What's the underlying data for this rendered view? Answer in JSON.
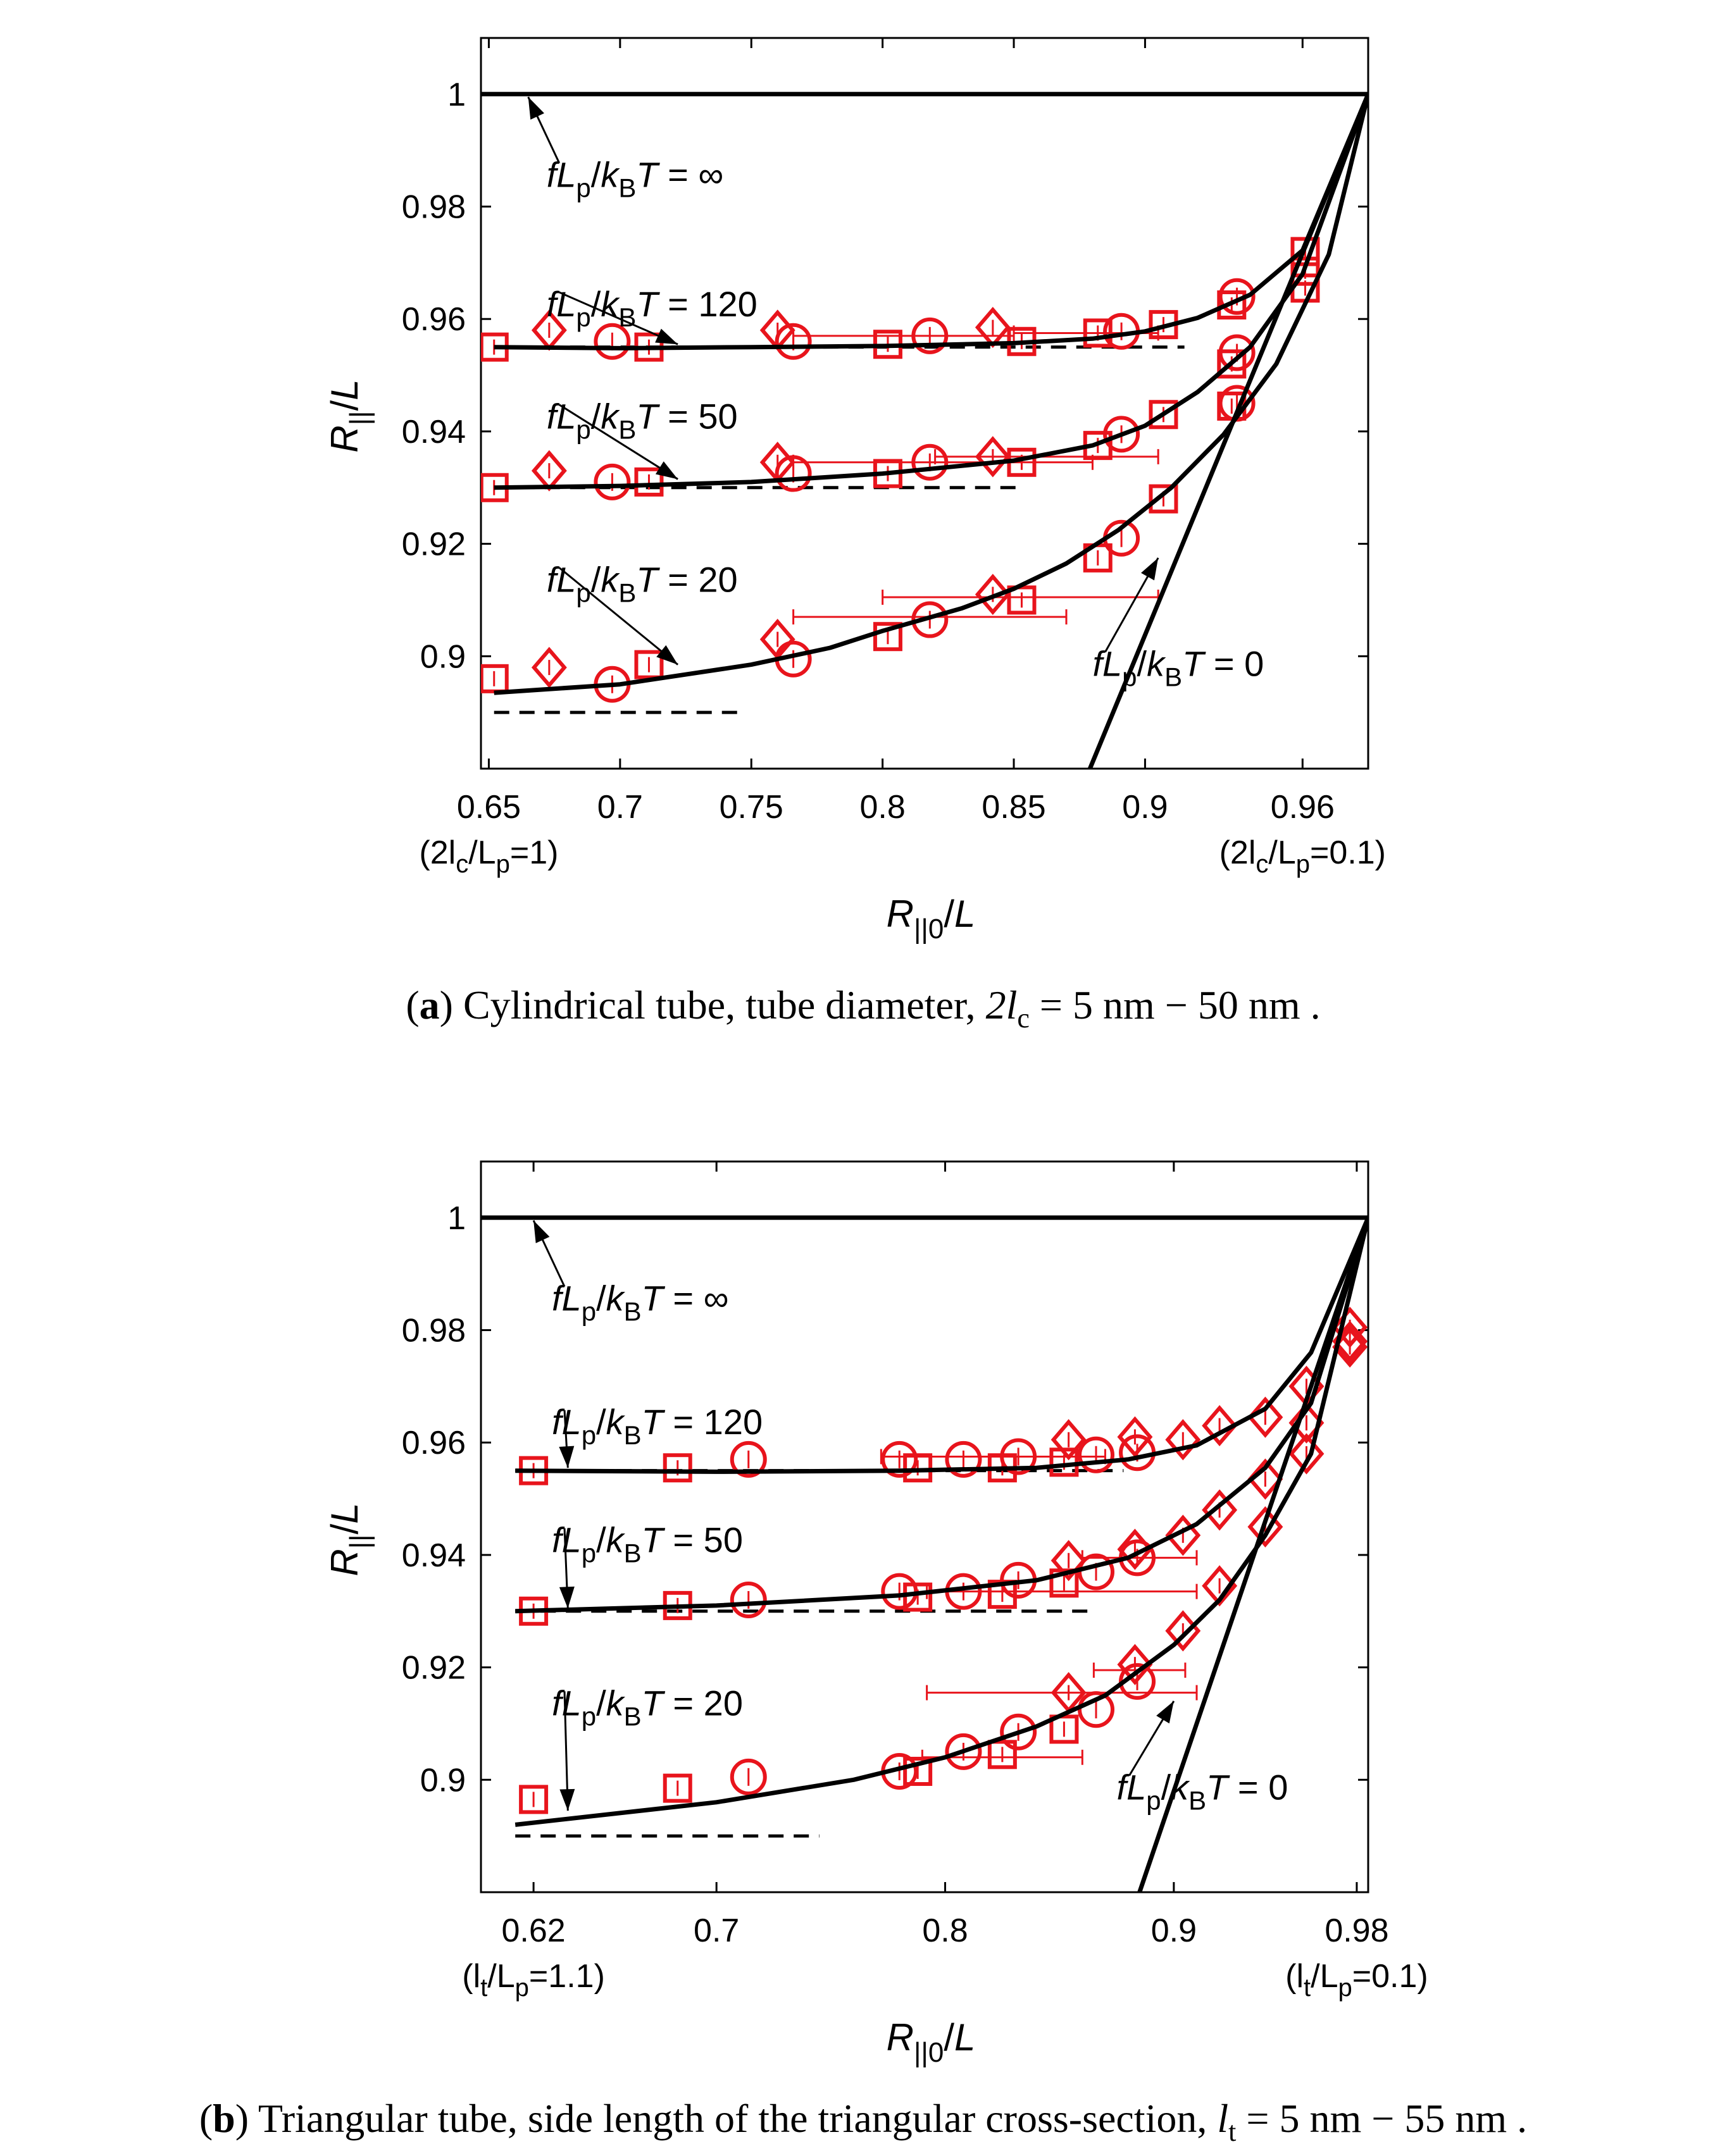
{
  "chart_data": [
    {
      "type": "line",
      "panel_label": "a",
      "caption": ") Cylindrical tube, tube diameter, ",
      "caption_formula": "2l",
      "caption_sub": "c",
      "caption_range": " = 5 nm − 50 nm .",
      "xlabel": "R||0/L",
      "ylabel": "R||/L",
      "xlim": [
        0.647,
        0.985
      ],
      "ylim": [
        0.88,
        1.01
      ],
      "xticks": [
        0.65,
        0.7,
        0.75,
        0.8,
        0.85,
        0.9,
        0.96
      ],
      "yticks": [
        0.9,
        0.92,
        0.94,
        0.96,
        0.98,
        1
      ],
      "x_notes": [
        {
          "x": 0.65,
          "text": "(2l",
          "sub": "c",
          "mid": "/L",
          "sub2": "p",
          "end": "=1)"
        },
        {
          "x": 0.96,
          "text": "(2l",
          "sub": "c",
          "mid": "/L",
          "sub2": "p",
          "end": "=0.1)"
        }
      ],
      "curves": [
        {
          "name": "fLp/kBT = ∞",
          "x": [
            0.647,
            0.985
          ],
          "y": [
            1.0,
            1.0
          ]
        },
        {
          "name": "fLp/kBT = 120",
          "x": [
            0.652,
            0.7,
            0.75,
            0.8,
            0.85,
            0.88,
            0.9,
            0.92,
            0.94,
            0.96,
            0.985
          ],
          "y": [
            0.955,
            0.9548,
            0.955,
            0.9552,
            0.9557,
            0.9565,
            0.9578,
            0.9602,
            0.9643,
            0.9722,
            1.0
          ]
        },
        {
          "name": "fLp/kBT = 50",
          "x": [
            0.652,
            0.7,
            0.75,
            0.8,
            0.85,
            0.88,
            0.9,
            0.92,
            0.94,
            0.96,
            0.985
          ],
          "y": [
            0.93,
            0.9303,
            0.931,
            0.9325,
            0.9348,
            0.9375,
            0.941,
            0.947,
            0.955,
            0.968,
            1.0
          ]
        },
        {
          "name": "fLp/kBT = 20",
          "x": [
            0.652,
            0.7,
            0.75,
            0.78,
            0.8,
            0.83,
            0.85,
            0.87,
            0.89,
            0.91,
            0.93,
            0.95,
            0.97,
            0.985
          ],
          "y": [
            0.8935,
            0.895,
            0.8985,
            0.9015,
            0.9045,
            0.9085,
            0.912,
            0.9165,
            0.9225,
            0.93,
            0.9395,
            0.952,
            0.9715,
            1.0
          ]
        },
        {
          "name": "fLp/kBT = 0",
          "x": [
            0.879,
            0.985
          ],
          "y": [
            0.88,
            1.0
          ]
        }
      ],
      "asymptotes": [
        {
          "y": 0.955,
          "x": [
            0.652,
            0.915
          ]
        },
        {
          "y": 0.93,
          "x": [
            0.652,
            0.853
          ]
        },
        {
          "y": 0.89,
          "x": [
            0.652,
            0.745
          ]
        }
      ],
      "markers": {
        "square": [
          [
            0.652,
            0.955
          ],
          [
            0.711,
            0.955
          ],
          [
            0.802,
            0.9555
          ],
          [
            0.853,
            0.956
          ],
          [
            0.882,
            0.9575
          ],
          [
            0.907,
            0.959
          ],
          [
            0.933,
            0.9625
          ],
          [
            0.961,
            0.972
          ],
          [
            0.652,
            0.93
          ],
          [
            0.711,
            0.931
          ],
          [
            0.802,
            0.9325
          ],
          [
            0.853,
            0.9345
          ],
          [
            0.882,
            0.9375
          ],
          [
            0.907,
            0.943
          ],
          [
            0.933,
            0.952
          ],
          [
            0.961,
            0.9685
          ],
          [
            0.652,
            0.896
          ],
          [
            0.711,
            0.8985
          ],
          [
            0.802,
            0.9035
          ],
          [
            0.853,
            0.91
          ],
          [
            0.882,
            0.9175
          ],
          [
            0.907,
            0.928
          ],
          [
            0.933,
            0.9445
          ],
          [
            0.961,
            0.9655
          ]
        ],
        "circle": [
          [
            0.697,
            0.956
          ],
          [
            0.766,
            0.956
          ],
          [
            0.818,
            0.957
          ],
          [
            0.891,
            0.9578
          ],
          [
            0.935,
            0.964
          ],
          [
            0.697,
            0.931
          ],
          [
            0.766,
            0.9325
          ],
          [
            0.818,
            0.9345
          ],
          [
            0.891,
            0.9395
          ],
          [
            0.935,
            0.954
          ],
          [
            0.697,
            0.895
          ],
          [
            0.766,
            0.8995
          ],
          [
            0.818,
            0.9065
          ],
          [
            0.891,
            0.921
          ],
          [
            0.935,
            0.945
          ]
        ],
        "diamond": [
          [
            0.673,
            0.958
          ],
          [
            0.76,
            0.958
          ],
          [
            0.842,
            0.9585
          ],
          [
            0.673,
            0.933
          ],
          [
            0.76,
            0.9345
          ],
          [
            0.842,
            0.9355
          ],
          [
            0.673,
            0.898
          ],
          [
            0.76,
            0.903
          ],
          [
            0.842,
            0.911
          ]
        ]
      },
      "xerr": [
        {
          "y": 0.957,
          "x": [
            0.766,
            0.85
          ]
        },
        {
          "y": 0.9345,
          "x": [
            0.766,
            0.88
          ]
        },
        {
          "y": 0.907,
          "x": [
            0.766,
            0.87
          ]
        },
        {
          "y": 0.9105,
          "x": [
            0.8,
            0.905
          ]
        },
        {
          "y": 0.9575,
          "x": [
            0.85,
            0.905
          ]
        },
        {
          "y": 0.9355,
          "x": [
            0.82,
            0.905
          ]
        }
      ],
      "curve_labels": [
        {
          "x": 0.672,
          "y": 0.9855,
          "text": "fLp/kBT = ∞",
          "arrow_to": [
            0.665,
            0.9995
          ]
        },
        {
          "x": 0.672,
          "y": 0.9625,
          "text": "fLp/kBT = 120",
          "arrow_to": [
            0.722,
            0.9555
          ]
        },
        {
          "x": 0.672,
          "y": 0.9425,
          "text": "fLp/kBT = 50",
          "arrow_to": [
            0.722,
            0.9315
          ]
        },
        {
          "x": 0.672,
          "y": 0.9135,
          "text": "fLp/kBT = 20",
          "arrow_to": [
            0.722,
            0.8985
          ]
        },
        {
          "x": 0.88,
          "y": 0.8985,
          "text": "fLp/kBT = 0",
          "arrow_to": [
            0.905,
            0.9175
          ]
        }
      ]
    },
    {
      "type": "line",
      "panel_label": "b",
      "caption": ") Triangular tube, side length of the triangular cross-section, ",
      "caption_formula": "l",
      "caption_sub": "t",
      "caption_range": " = 5 nm − 55 nm .",
      "xlabel": "R||0/L",
      "ylabel": "R||/L",
      "xlim": [
        0.597,
        0.985
      ],
      "ylim": [
        0.88,
        1.01
      ],
      "xticks": [
        0.62,
        0.7,
        0.8,
        0.9,
        0.98
      ],
      "yticks": [
        0.9,
        0.92,
        0.94,
        0.96,
        0.98,
        1
      ],
      "x_notes": [
        {
          "x": 0.62,
          "text": "(l",
          "sub": "t",
          "mid": "/L",
          "sub2": "p",
          "end": "=1.1)"
        },
        {
          "x": 0.98,
          "text": "(l",
          "sub": "t",
          "mid": "/L",
          "sub2": "p",
          "end": "=0.1)"
        }
      ],
      "curves": [
        {
          "name": "fLp/kBT = ∞",
          "x": [
            0.597,
            0.985
          ],
          "y": [
            1.0,
            1.0
          ]
        },
        {
          "name": "fLp/kBT = 120",
          "x": [
            0.612,
            0.7,
            0.78,
            0.84,
            0.88,
            0.91,
            0.94,
            0.96,
            0.985
          ],
          "y": [
            0.955,
            0.9548,
            0.955,
            0.9555,
            0.957,
            0.9595,
            0.966,
            0.976,
            1.0
          ]
        },
        {
          "name": "fLp/kBT = 50",
          "x": [
            0.612,
            0.7,
            0.78,
            0.84,
            0.88,
            0.91,
            0.94,
            0.96,
            0.985
          ],
          "y": [
            0.93,
            0.931,
            0.9328,
            0.9355,
            0.9395,
            0.9455,
            0.9555,
            0.967,
            1.0
          ]
        },
        {
          "name": "fLp/kBT = 20",
          "x": [
            0.612,
            0.7,
            0.76,
            0.8,
            0.84,
            0.87,
            0.9,
            0.92,
            0.94,
            0.96,
            0.985
          ],
          "y": [
            0.892,
            0.896,
            0.9,
            0.904,
            0.9095,
            0.915,
            0.924,
            0.932,
            0.9435,
            0.958,
            1.0
          ]
        },
        {
          "name": "fLp/kBT = 0",
          "x": [
            0.885,
            0.985
          ],
          "y": [
            0.88,
            1.0
          ]
        }
      ],
      "asymptotes": [
        {
          "y": 0.955,
          "x": [
            0.612,
            0.878
          ]
        },
        {
          "y": 0.93,
          "x": [
            0.612,
            0.863
          ]
        },
        {
          "y": 0.89,
          "x": [
            0.612,
            0.745
          ]
        }
      ],
      "markers": {
        "square": [
          [
            0.62,
            0.955
          ],
          [
            0.683,
            0.9555
          ],
          [
            0.788,
            0.9555
          ],
          [
            0.825,
            0.9555
          ],
          [
            0.852,
            0.9565
          ],
          [
            0.62,
            0.93
          ],
          [
            0.683,
            0.931
          ],
          [
            0.788,
            0.9325
          ],
          [
            0.825,
            0.933
          ],
          [
            0.852,
            0.935
          ],
          [
            0.62,
            0.8965
          ],
          [
            0.683,
            0.8985
          ],
          [
            0.788,
            0.9015
          ],
          [
            0.825,
            0.9045
          ],
          [
            0.852,
            0.909
          ]
        ],
        "circle": [
          [
            0.714,
            0.957
          ],
          [
            0.78,
            0.957
          ],
          [
            0.808,
            0.957
          ],
          [
            0.832,
            0.9575
          ],
          [
            0.866,
            0.9578
          ],
          [
            0.884,
            0.9582
          ],
          [
            0.714,
            0.932
          ],
          [
            0.78,
            0.9335
          ],
          [
            0.808,
            0.9335
          ],
          [
            0.832,
            0.9355
          ],
          [
            0.866,
            0.937
          ],
          [
            0.884,
            0.9395
          ],
          [
            0.714,
            0.9005
          ],
          [
            0.78,
            0.9015
          ],
          [
            0.808,
            0.905
          ],
          [
            0.832,
            0.9085
          ],
          [
            0.866,
            0.9125
          ],
          [
            0.884,
            0.9175
          ]
        ],
        "diamond": [
          [
            0.854,
            0.9605
          ],
          [
            0.883,
            0.961
          ],
          [
            0.904,
            0.9605
          ],
          [
            0.92,
            0.963
          ],
          [
            0.94,
            0.9645
          ],
          [
            0.958,
            0.97
          ],
          [
            0.977,
            0.9805
          ],
          [
            0.854,
            0.939
          ],
          [
            0.883,
            0.941
          ],
          [
            0.904,
            0.9435
          ],
          [
            0.92,
            0.948
          ],
          [
            0.94,
            0.9535
          ],
          [
            0.958,
            0.9635
          ],
          [
            0.977,
            0.978
          ],
          [
            0.854,
            0.9155
          ],
          [
            0.883,
            0.9205
          ],
          [
            0.904,
            0.9265
          ],
          [
            0.92,
            0.9345
          ],
          [
            0.94,
            0.945
          ],
          [
            0.958,
            0.958
          ],
          [
            0.977,
            0.977
          ]
        ]
      },
      "xerr": [
        {
          "y": 0.9575,
          "x": [
            0.772,
            0.87
          ]
        },
        {
          "y": 0.9335,
          "x": [
            0.792,
            0.91
          ]
        },
        {
          "y": 0.904,
          "x": [
            0.79,
            0.86
          ]
        },
        {
          "y": 0.9155,
          "x": [
            0.792,
            0.91
          ]
        },
        {
          "y": 0.9395,
          "x": [
            0.86,
            0.91
          ]
        },
        {
          "y": 0.9195,
          "x": [
            0.865,
            0.905
          ]
        }
      ],
      "curve_labels": [
        {
          "x": 0.628,
          "y": 0.9855,
          "text": "fLp/kBT = ∞",
          "arrow_to": [
            0.62,
            0.9995
          ]
        },
        {
          "x": 0.628,
          "y": 0.9635,
          "text": "fLp/kBT = 120",
          "arrow_to": [
            0.635,
            0.9555
          ]
        },
        {
          "x": 0.628,
          "y": 0.9425,
          "text": "fLp/kBT = 50",
          "arrow_to": [
            0.635,
            0.9305
          ]
        },
        {
          "x": 0.628,
          "y": 0.9135,
          "text": "fLp/kBT = 20",
          "arrow_to": [
            0.635,
            0.8945
          ]
        },
        {
          "x": 0.875,
          "y": 0.8985,
          "text": "fLp/kBT = 0",
          "arrow_to": [
            0.9,
            0.914
          ]
        }
      ]
    }
  ]
}
